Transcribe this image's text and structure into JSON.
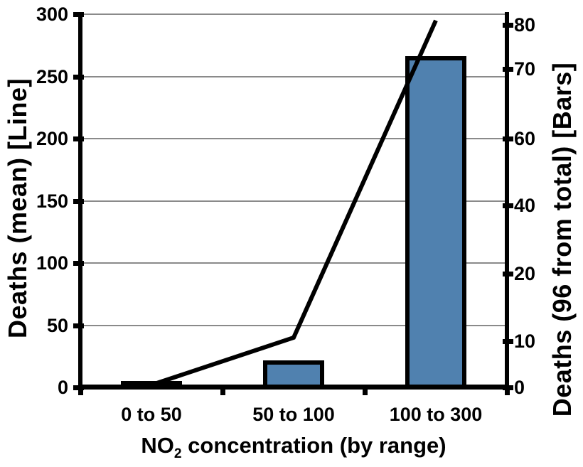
{
  "chart_data": {
    "type": "combo-bar-line",
    "background_color": "#FFFFFF",
    "categories": [
      "0 to 50",
      "50 to 100",
      "100 to 300"
    ],
    "series": [
      {
        "name": "Deaths (96 from total) [Bars]",
        "type": "bar",
        "axis": "right",
        "values": [
          0.5,
          5,
          72
        ],
        "fill_color": "#5081AF",
        "border_color": "#000000"
      },
      {
        "name": "Deaths (mean) [Line]",
        "type": "line",
        "axis": "left",
        "values": [
          2,
          40,
          295
        ],
        "line_color": "#000000"
      }
    ],
    "x_axis": {
      "title_prefix": "NO",
      "title_subscript": "2",
      "title_suffix": " concentration (by range)",
      "tick_labels": [
        "0 to 50",
        "50 to 100",
        "100 to 300"
      ]
    },
    "left_axis": {
      "title": "Deaths (mean) [Line]",
      "min": 0,
      "max": 300,
      "ticks": [
        300,
        250,
        200,
        150,
        100,
        50,
        0
      ]
    },
    "right_axis": {
      "title": "Deaths (96 from total) [Bars]",
      "min": 0,
      "max": 80,
      "ticks": [
        {
          "label": 80,
          "pos": 0.971
        },
        {
          "label": 70,
          "pos": 0.853
        },
        {
          "label": 60,
          "pos": 0.667
        },
        {
          "label": 40,
          "pos": 0.488
        },
        {
          "label": 20,
          "pos": 0.305
        },
        {
          "label": 10,
          "pos": 0.124
        },
        {
          "label": 0,
          "pos": 0.0
        }
      ]
    },
    "gridlines": "horizontal-left-axis-50s",
    "gridline_color": "#8A8A8A",
    "axis_color": "#000000"
  }
}
